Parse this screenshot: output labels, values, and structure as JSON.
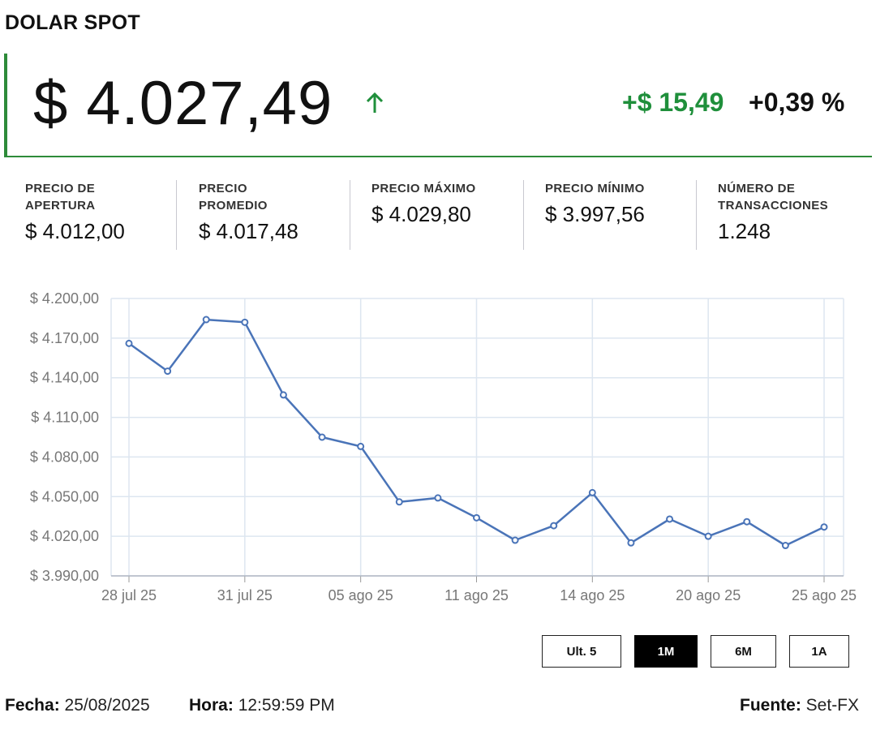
{
  "title": "DOLAR SPOT",
  "price": "$ 4.027,49",
  "change_abs": "+$ 15,49",
  "change_pct": "+0,39 %",
  "colors": {
    "accent_green": "#1f8f3b",
    "border_green": "#2e8b3a",
    "line": "#4a74b8",
    "grid": "#dde6f0"
  },
  "stats": [
    {
      "label": "PRECIO DE APERTURA",
      "value": "$ 4.012,00"
    },
    {
      "label": "PRECIO PROMEDIO",
      "value": "$ 4.017,48"
    },
    {
      "label": "PRECIO MÁXIMO",
      "value": "$ 4.029,80"
    },
    {
      "label": "PRECIO MÍNIMO",
      "value": "$ 3.997,56"
    },
    {
      "label": "NÚMERO DE TRANSACCIONES",
      "value": "1.248"
    }
  ],
  "chart_data": {
    "type": "line",
    "title": "",
    "xlabel": "",
    "ylabel": "",
    "ylim": [
      3990,
      4200
    ],
    "yticks": [
      3990,
      4020,
      4050,
      4080,
      4110,
      4140,
      4170,
      4200
    ],
    "ytick_labels": [
      "$ 3.990,00",
      "$ 4.020,00",
      "$ 4.050,00",
      "$ 4.080,00",
      "$ 4.110,00",
      "$ 4.140,00",
      "$ 4.170,00",
      "$ 4.200,00"
    ],
    "xtick_labels": [
      "28 jul 25",
      "31 jul 25",
      "05 ago 25",
      "11 ago 25",
      "14 ago 25",
      "20 ago 25",
      "25 ago 25"
    ],
    "xtick_point_index": [
      0,
      3,
      6,
      9,
      12,
      15,
      18
    ],
    "grid": true,
    "series": [
      {
        "values": [
          4166,
          4145,
          4184,
          4182,
          4127,
          4095,
          4088,
          4046,
          4049,
          4034,
          4017,
          4028,
          4053,
          4015,
          4033,
          4020,
          4031,
          4013,
          4027
        ]
      }
    ]
  },
  "range_buttons": [
    {
      "label": "Ult. 5",
      "active": false
    },
    {
      "label": "1M",
      "active": true
    },
    {
      "label": "6M",
      "active": false
    },
    {
      "label": "1A",
      "active": false
    }
  ],
  "footer": {
    "fecha_label": "Fecha:",
    "fecha_value": "25/08/2025",
    "hora_label": "Hora:",
    "hora_value": "12:59:59 PM",
    "fuente_label": "Fuente:",
    "fuente_value": "Set-FX"
  }
}
